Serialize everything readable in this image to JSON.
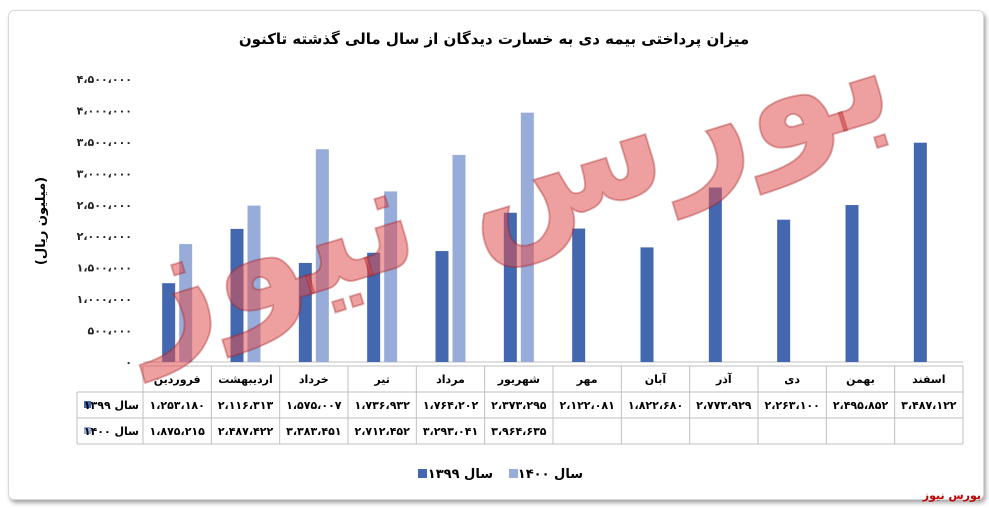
{
  "chart_data": {
    "type": "bar",
    "title": "میزان پرداختی بیمه دی به خسارت دیدگان از سال مالی گذشته تاکنون",
    "ylabel": "(میلیون ریال)",
    "ylim": [
      0,
      4500000
    ],
    "ytick_labels": [
      "۴،۵۰۰،۰۰۰",
      "۴،۰۰۰،۰۰۰",
      "۳،۵۰۰،۰۰۰",
      "۳،۰۰۰،۰۰۰",
      "۲،۵۰۰،۰۰۰",
      "۲،۰۰۰،۰۰۰",
      "۱،۵۰۰،۰۰۰",
      "۱،۰۰۰،۰۰۰",
      "۵۰۰،۰۰۰",
      "۰"
    ],
    "categories": [
      "فروردین",
      "اردیبهشت",
      "خرداد",
      "تیر",
      "مرداد",
      "شهریور",
      "مهر",
      "آبان",
      "آذر",
      "دی",
      "بهمن",
      "اسفند"
    ],
    "series": [
      {
        "name": "سال ۱۳۹۹",
        "color": "#4468B0",
        "values": [
          1253180,
          2116313,
          1575007,
          1736932,
          1764202,
          2373295,
          2122081,
          1822680,
          2773929,
          2263100,
          2495852,
          3487122
        ],
        "value_labels": [
          "۱،۲۵۳،۱۸۰",
          "۲،۱۱۶،۳۱۳",
          "۱،۵۷۵،۰۰۷",
          "۱،۷۳۶،۹۳۲",
          "۱،۷۶۴،۲۰۲",
          "۲،۳۷۳،۲۹۵",
          "۲،۱۲۲،۰۸۱",
          "۱،۸۲۲،۶۸۰",
          "۲،۷۷۳،۹۲۹",
          "۲،۲۶۳،۱۰۰",
          "۲،۴۹۵،۸۵۲",
          "۳،۴۸۷،۱۲۲"
        ]
      },
      {
        "name": "سال ۱۴۰۰",
        "color": "#98ACDA",
        "values": [
          1875215,
          2487422,
          3383451,
          2712452,
          3293041,
          3964635,
          null,
          null,
          null,
          null,
          null,
          null
        ],
        "value_labels": [
          "۱،۸۷۵،۲۱۵",
          "۲،۴۸۷،۴۲۲",
          "۳،۳۸۳،۴۵۱",
          "۲،۷۱۲،۴۵۲",
          "۳،۲۹۳،۰۴۱",
          "۳،۹۶۴،۶۳۵",
          "",
          "",
          "",
          "",
          "",
          ""
        ]
      }
    ],
    "legend_position": "bottom",
    "grid": false,
    "data_table": true
  },
  "watermark_text": "بورس نیوز",
  "overlay_logo": "بورس نیوز"
}
